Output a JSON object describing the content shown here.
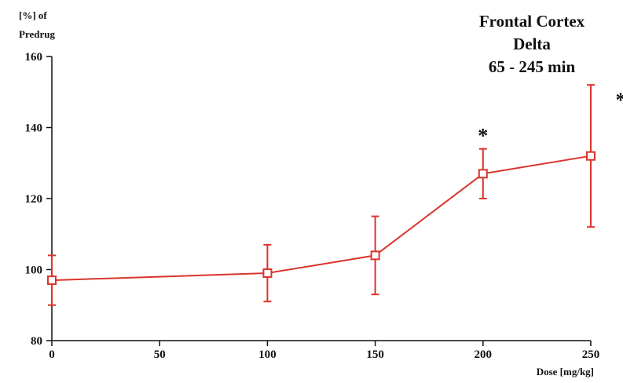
{
  "chart_data": {
    "type": "line",
    "title_lines": [
      "Frontal Cortex",
      "Delta",
      "65 - 245 min"
    ],
    "ylabel_lines": [
      "[%] of",
      "Predrug"
    ],
    "xlabel": "Dose [mg/kg]",
    "xlim": [
      0,
      250
    ],
    "ylim": [
      80,
      160
    ],
    "xticks": [
      "0",
      "50",
      "100",
      "150",
      "200",
      "250"
    ],
    "yticks": [
      "80",
      "100",
      "120",
      "140",
      "160"
    ],
    "grid": false,
    "series": [
      {
        "x": [
          0,
          100,
          150,
          200,
          250
        ],
        "y": [
          97,
          99,
          104,
          127,
          132
        ],
        "error": [
          7,
          8,
          11,
          7,
          20
        ],
        "significant": [
          false,
          false,
          false,
          true,
          true
        ],
        "significance_marker": "*"
      }
    ],
    "colors": {
      "series": "#d9342b",
      "axis": "#111111"
    }
  }
}
